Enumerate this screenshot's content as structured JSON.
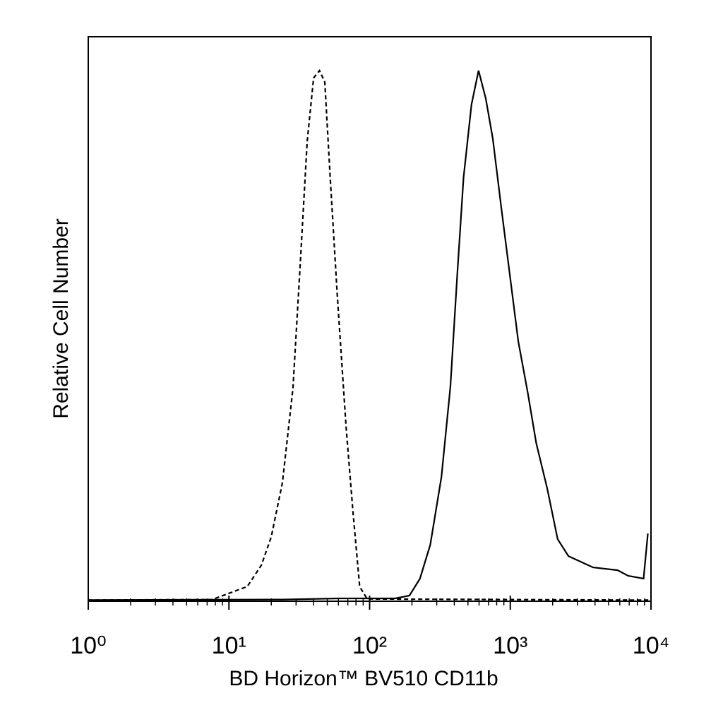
{
  "chart_data": {
    "type": "line",
    "xlabel": "BD Horizon™ BV510 CD11b",
    "ylabel": "Relative Cell Number",
    "xscale": "log",
    "xlim": [
      1,
      10000
    ],
    "ylim": [
      0,
      100
    ],
    "xticks": [
      {
        "value": 1,
        "label": "10⁰"
      },
      {
        "value": 10,
        "label": "10¹"
      },
      {
        "value": 100,
        "label": "10²"
      },
      {
        "value": 1000,
        "label": "10³"
      },
      {
        "value": 10000,
        "label": "10⁴"
      }
    ],
    "xminorticks": [
      2,
      3,
      4,
      5,
      6,
      7,
      8,
      9,
      20,
      30,
      40,
      50,
      60,
      70,
      80,
      90,
      200,
      300,
      400,
      500,
      600,
      700,
      800,
      900,
      2000,
      3000,
      4000,
      5000,
      6000,
      7000,
      8000,
      9000
    ],
    "series": [
      {
        "color": "#000000",
        "dash": "dashed",
        "x": [
          1,
          7.6,
          9.5,
          13.5,
          17,
          20,
          24,
          28.5,
          32,
          36,
          40,
          44,
          48,
          52.5,
          59,
          68,
          76,
          85,
          96,
          9800
        ],
        "values": [
          0.2,
          0.3,
          1.2,
          2.6,
          6.4,
          11.4,
          21,
          37.7,
          59,
          81.5,
          92.7,
          94,
          92,
          75,
          54,
          31,
          16,
          2.6,
          0.4,
          0.2
        ]
      },
      {
        "color": "#000000",
        "dash": "solid",
        "x": [
          1,
          24,
          60,
          152,
          192,
          228,
          270,
          324,
          375,
          420,
          465,
          530,
          595,
          670,
          750,
          860,
          990,
          1140,
          1330,
          1530,
          1830,
          2170,
          2590,
          3870,
          5800,
          6870,
          8860,
          9500
        ],
        "values": [
          0.2,
          0.3,
          0.5,
          0.5,
          1,
          4,
          10,
          22,
          38,
          58,
          75,
          88,
          94,
          89,
          82,
          70,
          58,
          46,
          37,
          28,
          20,
          11,
          8,
          6,
          5.5,
          4.5,
          4,
          12
        ]
      }
    ]
  }
}
